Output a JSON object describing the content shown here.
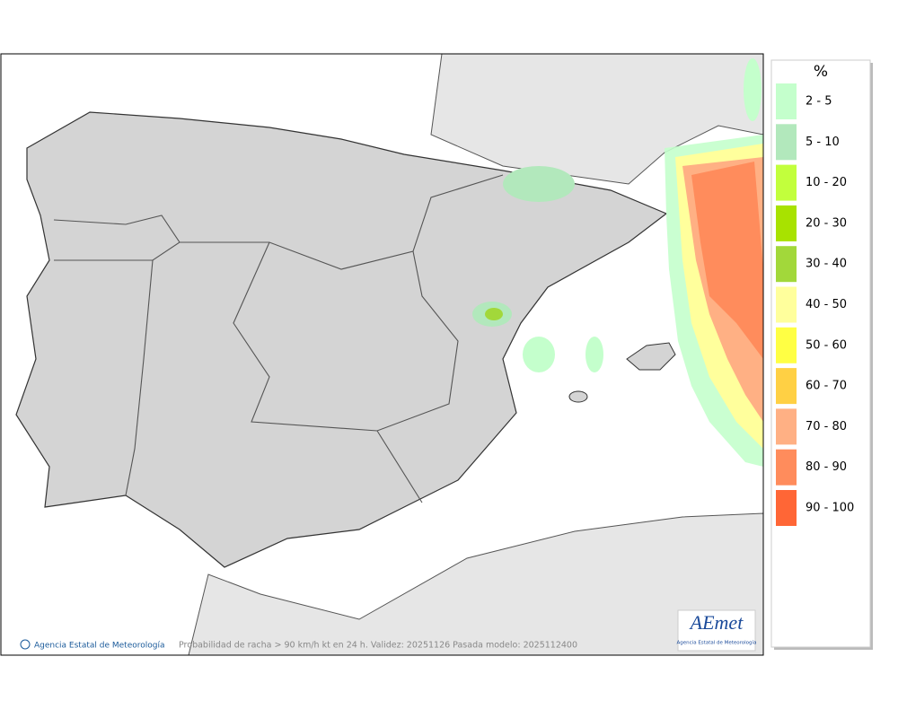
{
  "map": {
    "credit": "Agencia Estatal de Meteorología",
    "caption": "Probabilidad de racha > 90 km/h kt en 24 h. Validez: 20251126 Pasada modelo: 2025112400",
    "logo": {
      "name": "AEmet",
      "subtitle": "Agencia Estatal de Meteorología"
    }
  },
  "legend": {
    "title": "%",
    "items": [
      {
        "label": "2 - 5",
        "color": "#c4ffcc"
      },
      {
        "label": "5 - 10",
        "color": "#b2e8bc"
      },
      {
        "label": "10 - 20",
        "color": "#c2ff3c"
      },
      {
        "label": "20 - 30",
        "color": "#a8e200"
      },
      {
        "label": "30 - 40",
        "color": "#a2d83a"
      },
      {
        "label": "40 - 50",
        "color": "#ffff9c"
      },
      {
        "label": "50 - 60",
        "color": "#ffff44"
      },
      {
        "label": "60 - 70",
        "color": "#ffd044"
      },
      {
        "label": "70 - 80",
        "color": "#ffb084"
      },
      {
        "label": "80 - 90",
        "color": "#ff8c5c"
      },
      {
        "label": "90 - 100",
        "color": "#ff6636"
      }
    ]
  }
}
